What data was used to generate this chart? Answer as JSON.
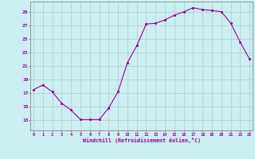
{
  "x": [
    0,
    1,
    2,
    3,
    4,
    5,
    6,
    7,
    8,
    9,
    10,
    11,
    12,
    13,
    14,
    15,
    16,
    17,
    18,
    19,
    20,
    21,
    22,
    23
  ],
  "y": [
    17.5,
    18.2,
    17.2,
    15.5,
    14.5,
    13.1,
    13.1,
    13.1,
    14.8,
    17.2,
    21.5,
    24.0,
    27.2,
    27.3,
    27.8,
    28.5,
    29.0,
    29.6,
    29.3,
    29.2,
    29.0,
    27.3,
    24.5,
    22.0
  ],
  "line_color": "#990099",
  "marker_color": "#990099",
  "bg_color": "#cceef0",
  "grid_color": "#b0c8cc",
  "xlabel": "Windchill (Refroidissement éolien,°C)",
  "xlabel_color": "#990099",
  "xtick_labels": [
    "0",
    "1",
    "2",
    "3",
    "4",
    "5",
    "6",
    "7",
    "8",
    "9",
    "10",
    "11",
    "12",
    "13",
    "14",
    "15",
    "16",
    "17",
    "18",
    "19",
    "20",
    "21",
    "22",
    "23"
  ],
  "ytick_values": [
    13,
    15,
    17,
    19,
    21,
    23,
    25,
    27,
    29
  ],
  "ylim": [
    11.5,
    30.5
  ],
  "xlim": [
    -0.3,
    23.3
  ],
  "tick_color": "#990099",
  "axis_color": "#888888"
}
